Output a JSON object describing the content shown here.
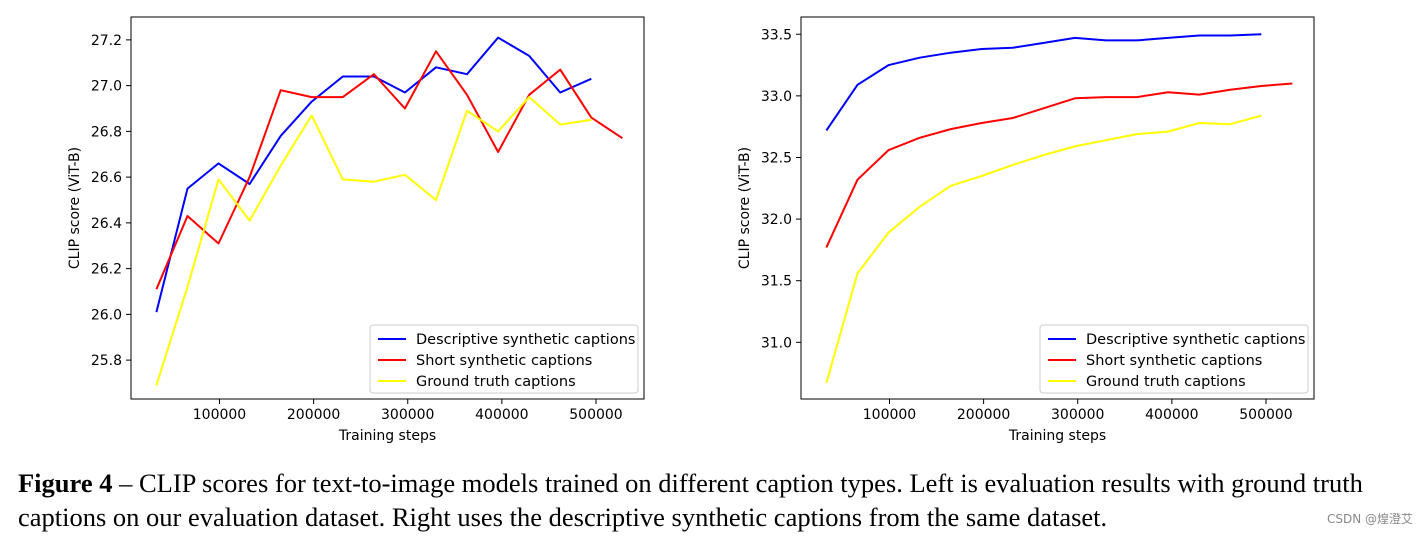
{
  "chart_data": [
    {
      "type": "line",
      "title": "",
      "xlabel": "Training steps",
      "ylabel": "CLIP score (ViT-B)",
      "xlim": [
        6000,
        551000
      ],
      "ylim": [
        25.63,
        27.3
      ],
      "xticks": [
        100000,
        200000,
        300000,
        400000,
        500000
      ],
      "yticks": [
        25.8,
        26.0,
        26.2,
        26.4,
        26.6,
        26.8,
        27.0,
        27.2
      ],
      "xtick_labels": [
        "100000",
        "200000",
        "300000",
        "400000",
        "500000"
      ],
      "ytick_labels": [
        "25.8",
        "26.0",
        "26.2",
        "26.4",
        "26.6",
        "26.8",
        "27.0",
        "27.2"
      ],
      "legend": "lower-right",
      "series": [
        {
          "name": "Descriptive synthetic captions",
          "color": "#0000ff",
          "x": [
            33000,
            66000,
            99000,
            132000,
            165000,
            198000,
            231000,
            264000,
            297000,
            330000,
            363000,
            396000,
            429000,
            462000,
            495000
          ],
          "y": [
            26.01,
            26.55,
            26.66,
            26.57,
            26.78,
            26.93,
            27.04,
            27.04,
            26.97,
            27.08,
            27.05,
            27.21,
            27.13,
            26.97,
            27.03
          ]
        },
        {
          "name": "Short synthetic captions",
          "color": "#ff0000",
          "x": [
            33000,
            66000,
            99000,
            132000,
            165000,
            198000,
            231000,
            264000,
            297000,
            330000,
            363000,
            396000,
            429000,
            462000,
            495000,
            528000
          ],
          "y": [
            26.11,
            26.43,
            26.31,
            26.6,
            26.98,
            26.95,
            26.95,
            27.05,
            26.9,
            27.15,
            26.96,
            26.71,
            26.96,
            27.07,
            26.86,
            26.77
          ]
        },
        {
          "name": "Ground truth captions",
          "color": "#ffff00",
          "x": [
            33000,
            66000,
            99000,
            132000,
            165000,
            198000,
            231000,
            264000,
            297000,
            330000,
            363000,
            396000,
            429000,
            462000,
            495000
          ],
          "y": [
            25.69,
            26.12,
            26.59,
            26.41,
            26.65,
            26.87,
            26.59,
            26.58,
            26.61,
            26.5,
            26.89,
            26.8,
            26.95,
            26.83,
            26.85
          ]
        }
      ]
    },
    {
      "type": "line",
      "title": "",
      "xlabel": "Training steps",
      "ylabel": "CLIP score (ViT-B)",
      "xlim": [
        6000,
        551000
      ],
      "ylim": [
        30.54,
        33.64
      ],
      "xticks": [
        100000,
        200000,
        300000,
        400000,
        500000
      ],
      "yticks": [
        31.0,
        31.5,
        32.0,
        32.5,
        33.0,
        33.5
      ],
      "xtick_labels": [
        "100000",
        "200000",
        "300000",
        "400000",
        "500000"
      ],
      "ytick_labels": [
        "31.0",
        "31.5",
        "32.0",
        "32.5",
        "33.0",
        "33.5"
      ],
      "legend": "lower-right",
      "series": [
        {
          "name": "Descriptive synthetic captions",
          "color": "#0000ff",
          "x": [
            33000,
            66000,
            99000,
            132000,
            165000,
            198000,
            231000,
            264000,
            297000,
            330000,
            363000,
            396000,
            429000,
            462000,
            495000
          ],
          "y": [
            32.72,
            33.09,
            33.25,
            33.31,
            33.35,
            33.38,
            33.39,
            33.43,
            33.47,
            33.45,
            33.45,
            33.47,
            33.49,
            33.49,
            33.5
          ]
        },
        {
          "name": "Short synthetic captions",
          "color": "#ff0000",
          "x": [
            33000,
            66000,
            99000,
            132000,
            165000,
            198000,
            231000,
            264000,
            297000,
            330000,
            363000,
            396000,
            429000,
            462000,
            495000,
            528000
          ],
          "y": [
            31.77,
            32.32,
            32.56,
            32.66,
            32.73,
            32.78,
            32.82,
            32.9,
            32.98,
            32.99,
            32.99,
            33.03,
            33.01,
            33.05,
            33.08,
            33.1
          ]
        },
        {
          "name": "Ground truth captions",
          "color": "#ffff00",
          "x": [
            33000,
            66000,
            99000,
            132000,
            165000,
            198000,
            231000,
            264000,
            297000,
            330000,
            363000,
            396000,
            429000,
            462000,
            495000
          ],
          "y": [
            30.67,
            31.56,
            31.89,
            32.1,
            32.27,
            32.35,
            32.44,
            32.52,
            32.59,
            32.64,
            32.69,
            32.71,
            32.78,
            32.77,
            32.84
          ]
        }
      ]
    }
  ],
  "caption": {
    "label": "Figure 4",
    "text": " – CLIP scores for text-to-image models trained on different caption types. Left is evaluation results with ground truth captions on our evaluation dataset. Right uses the descriptive synthetic captions from the same dataset."
  },
  "watermark": "CSDN @煌澄艾"
}
